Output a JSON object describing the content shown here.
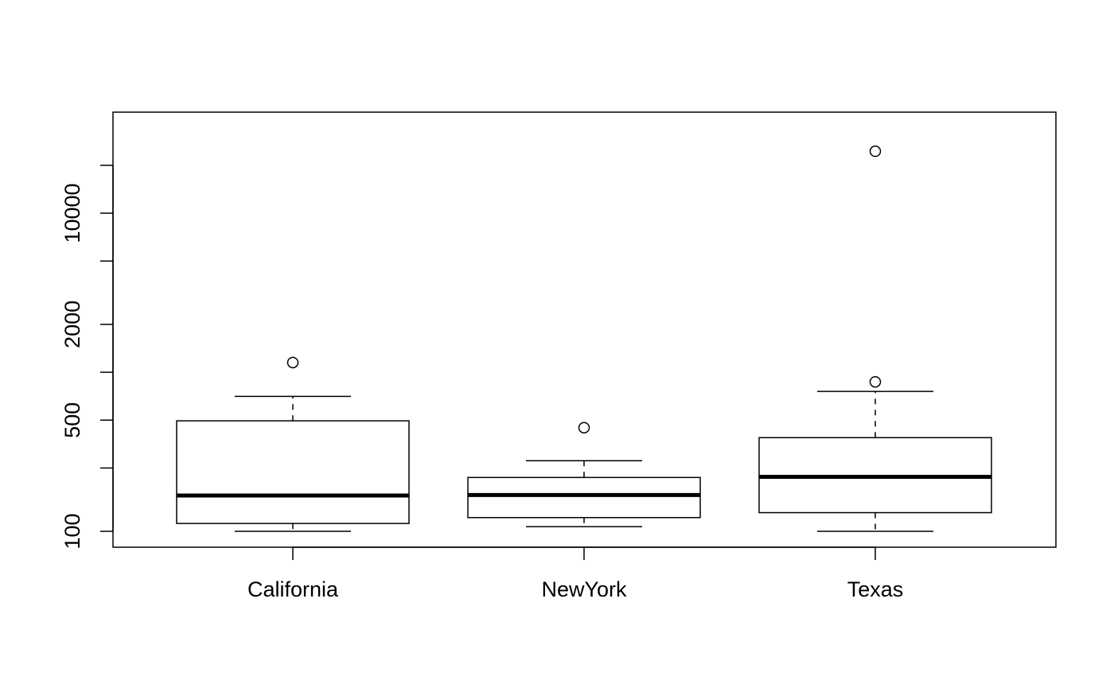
{
  "chart_data": {
    "type": "boxplot",
    "title": "",
    "xlabel": "",
    "ylabel": "",
    "y_scale": "log",
    "ylim": [
      78,
      25000
    ],
    "y_ticks": [
      {
        "value": 100,
        "label": "100"
      },
      {
        "value": 250,
        "label": ""
      },
      {
        "value": 500,
        "label": "500"
      },
      {
        "value": 1000,
        "label": ""
      },
      {
        "value": 2000,
        "label": "2000"
      },
      {
        "value": 5000,
        "label": ""
      },
      {
        "value": 10000,
        "label": "10000"
      },
      {
        "value": 20000,
        "label": ""
      }
    ],
    "categories": [
      "California",
      "NewYork",
      "Texas"
    ],
    "groups": [
      {
        "name": "California",
        "whisker_low": 100,
        "q1": 112,
        "median": 168,
        "q3": 495,
        "whisker_high": 705,
        "outliers": [
          1150
        ]
      },
      {
        "name": "NewYork",
        "whisker_low": 107,
        "q1": 122,
        "median": 169,
        "q3": 218,
        "whisker_high": 278,
        "outliers": [
          448
        ]
      },
      {
        "name": "Texas",
        "whisker_low": 100,
        "q1": 131,
        "median": 220,
        "q3": 388,
        "whisker_high": 758,
        "outliers": [
          870,
          24500
        ]
      }
    ],
    "grid": false,
    "colors": {
      "stroke": "#000000",
      "fill": "#ffffff"
    }
  }
}
